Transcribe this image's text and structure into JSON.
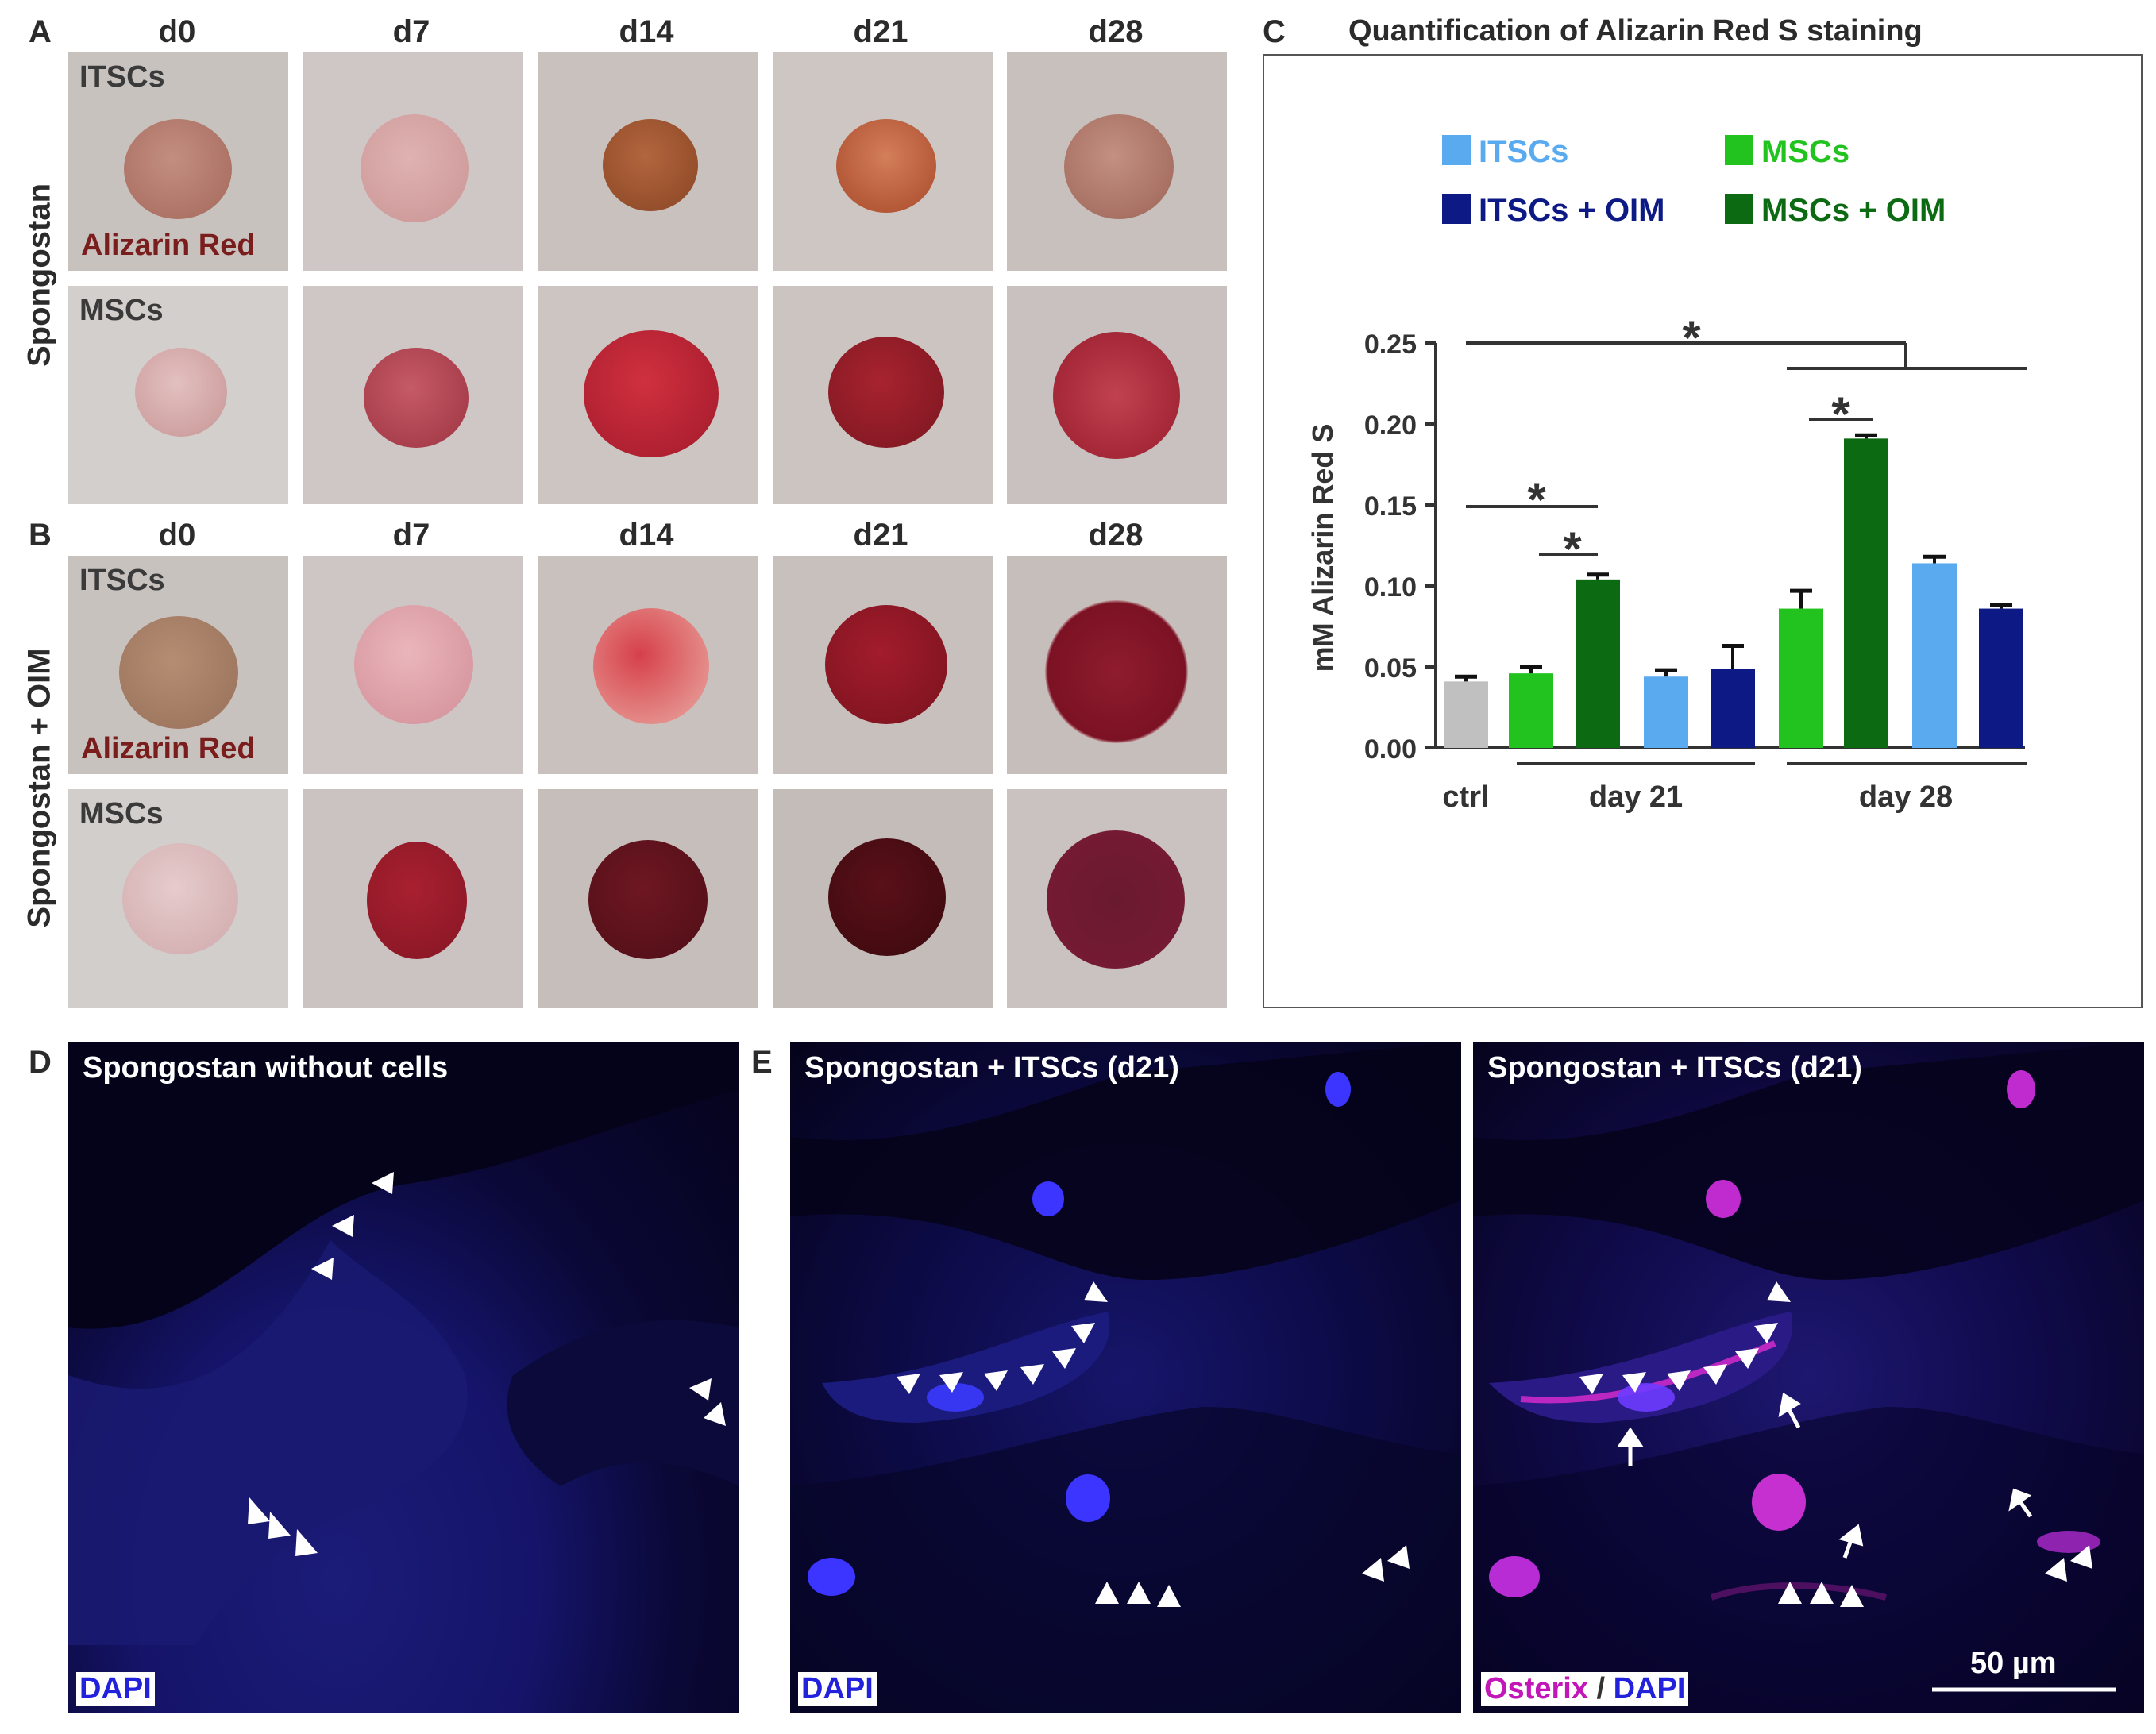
{
  "panels": {
    "A": "A",
    "B": "B",
    "C": "C",
    "D": "D",
    "E": "E"
  },
  "days": [
    "d0",
    "d7",
    "d14",
    "d21",
    "d28"
  ],
  "row_labels": {
    "A": "Spongostan",
    "B": "Spongostan + OIM"
  },
  "cell_labels": {
    "itscs": "ITSCs",
    "mscs": "MSCs"
  },
  "stain_label": "Alizarin Red",
  "colors": {
    "ctrl": "#c0c0c0",
    "itscs": "#5aaaf0",
    "itscs_oim": "#0d1a86",
    "mscs": "#23c31f",
    "mscs_oim": "#0c6a13"
  },
  "chart_data": {
    "type": "bar",
    "title": "Quantification of Alizarin Red S staining",
    "ylabel": "mM Alizarin Red S",
    "xlabel": "",
    "ylim": [
      0,
      0.25
    ],
    "yticks": [
      "0.00",
      "0.05",
      "0.10",
      "0.15",
      "0.20",
      "0.25"
    ],
    "legend": [
      {
        "name": "ITSCs",
        "color": "#5aaaf0"
      },
      {
        "name": "MSCs",
        "color": "#23c31f"
      },
      {
        "name": "ITSCs + OIM",
        "color": "#0d1a86"
      },
      {
        "name": "MSCs + OIM",
        "color": "#0c6a13"
      }
    ],
    "groups": [
      "ctrl",
      "day 21",
      "day 28"
    ],
    "bars": [
      {
        "group": "ctrl",
        "series": "ctrl",
        "value": 0.041,
        "error": 0.003,
        "color": "#c0c0c0"
      },
      {
        "group": "day 21",
        "series": "MSCs",
        "value": 0.046,
        "error": 0.004,
        "color": "#23c31f"
      },
      {
        "group": "day 21",
        "series": "MSCs + OIM",
        "value": 0.104,
        "error": 0.003,
        "color": "#0c6a13"
      },
      {
        "group": "day 21",
        "series": "ITSCs",
        "value": 0.044,
        "error": 0.004,
        "color": "#5aaaf0"
      },
      {
        "group": "day 21",
        "series": "ITSCs + OIM",
        "value": 0.049,
        "error": 0.014,
        "color": "#0d1a86"
      },
      {
        "group": "day 28",
        "series": "MSCs",
        "value": 0.086,
        "error": 0.011,
        "color": "#23c31f"
      },
      {
        "group": "day 28",
        "series": "MSCs + OIM",
        "value": 0.191,
        "error": 0.002,
        "color": "#0c6a13"
      },
      {
        "group": "day 28",
        "series": "ITSCs",
        "value": 0.114,
        "error": 0.004,
        "color": "#5aaaf0"
      },
      {
        "group": "day 28",
        "series": "ITSCs + OIM",
        "value": 0.086,
        "error": 0.002,
        "color": "#0d1a86"
      }
    ],
    "significance_marker": "*"
  },
  "fluorescence": {
    "d_title": "Spongostan without cells",
    "e1_title": "Spongostan + ITSCs (d21)",
    "e2_title": "Spongostan + ITSCs (d21)",
    "dapi": "DAPI",
    "osterix": "Osterix",
    "slash": " / ",
    "scale": "50 µm"
  }
}
